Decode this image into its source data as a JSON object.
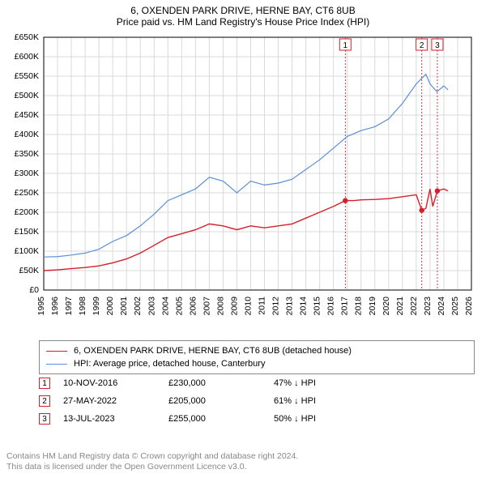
{
  "title_line1": "6, OXENDEN PARK DRIVE, HERNE BAY, CT6 8UB",
  "title_line2": "Price paid vs. HM Land Registry's House Price Index (HPI)",
  "chart": {
    "type": "line",
    "background_color": "#ffffff",
    "grid_color": "#d9d9d9",
    "axis_color": "#000000",
    "xlim": [
      1995,
      2026
    ],
    "ylim": [
      0,
      650000
    ],
    "y_ticks": [
      0,
      50000,
      100000,
      150000,
      200000,
      250000,
      300000,
      350000,
      400000,
      450000,
      500000,
      550000,
      600000,
      650000
    ],
    "y_tick_labels": [
      "£0",
      "£50K",
      "£100K",
      "£150K",
      "£200K",
      "£250K",
      "£300K",
      "£350K",
      "£400K",
      "£450K",
      "£500K",
      "£550K",
      "£600K",
      "£650K"
    ],
    "x_ticks": [
      1995,
      1996,
      1997,
      1998,
      1999,
      2000,
      2001,
      2002,
      2003,
      2004,
      2005,
      2006,
      2007,
      2008,
      2009,
      2010,
      2011,
      2012,
      2013,
      2014,
      2015,
      2016,
      2017,
      2018,
      2019,
      2020,
      2021,
      2022,
      2023,
      2024,
      2025,
      2026
    ],
    "series": [
      {
        "name": "price_paid",
        "color": "#d3212c",
        "line_width": 1.4,
        "points": [
          [
            1995,
            50000
          ],
          [
            1996,
            52000
          ],
          [
            1997,
            55000
          ],
          [
            1998,
            58000
          ],
          [
            1999,
            62000
          ],
          [
            2000,
            70000
          ],
          [
            2001,
            80000
          ],
          [
            2002,
            95000
          ],
          [
            2003,
            115000
          ],
          [
            2004,
            135000
          ],
          [
            2005,
            145000
          ],
          [
            2006,
            155000
          ],
          [
            2007,
            170000
          ],
          [
            2008,
            165000
          ],
          [
            2009,
            155000
          ],
          [
            2010,
            165000
          ],
          [
            2011,
            160000
          ],
          [
            2012,
            165000
          ],
          [
            2013,
            170000
          ],
          [
            2014,
            185000
          ],
          [
            2015,
            200000
          ],
          [
            2016,
            215000
          ],
          [
            2016.86,
            230000
          ],
          [
            2017.5,
            230000
          ],
          [
            2018,
            232000
          ],
          [
            2019,
            233000
          ],
          [
            2020,
            235000
          ],
          [
            2021,
            240000
          ],
          [
            2022,
            245000
          ],
          [
            2022.4,
            205000
          ],
          [
            2022.7,
            210000
          ],
          [
            2023,
            260000
          ],
          [
            2023.2,
            215000
          ],
          [
            2023.53,
            255000
          ],
          [
            2024,
            260000
          ],
          [
            2024.3,
            255000
          ]
        ],
        "dots": [
          {
            "x": 2016.86,
            "y": 230000
          },
          {
            "x": 2022.4,
            "y": 205000
          },
          {
            "x": 2023.53,
            "y": 255000
          }
        ]
      },
      {
        "name": "hpi",
        "color": "#5b8fd6",
        "line_width": 1.2,
        "points": [
          [
            1995,
            85000
          ],
          [
            1996,
            86000
          ],
          [
            1997,
            90000
          ],
          [
            1998,
            95000
          ],
          [
            1999,
            105000
          ],
          [
            2000,
            125000
          ],
          [
            2001,
            140000
          ],
          [
            2002,
            165000
          ],
          [
            2003,
            195000
          ],
          [
            2004,
            230000
          ],
          [
            2005,
            245000
          ],
          [
            2006,
            260000
          ],
          [
            2007,
            290000
          ],
          [
            2008,
            280000
          ],
          [
            2009,
            250000
          ],
          [
            2010,
            280000
          ],
          [
            2011,
            270000
          ],
          [
            2012,
            275000
          ],
          [
            2013,
            285000
          ],
          [
            2014,
            310000
          ],
          [
            2015,
            335000
          ],
          [
            2016,
            365000
          ],
          [
            2017,
            395000
          ],
          [
            2018,
            410000
          ],
          [
            2019,
            420000
          ],
          [
            2020,
            440000
          ],
          [
            2021,
            480000
          ],
          [
            2022,
            530000
          ],
          [
            2022.7,
            555000
          ],
          [
            2023,
            530000
          ],
          [
            2023.5,
            510000
          ],
          [
            2024,
            525000
          ],
          [
            2024.3,
            515000
          ]
        ]
      }
    ],
    "event_lines": [
      {
        "x": 2016.86,
        "label": "1",
        "color": "#d3212c"
      },
      {
        "x": 2022.4,
        "label": "2",
        "color": "#d3212c"
      },
      {
        "x": 2023.53,
        "label": "3",
        "color": "#d3212c"
      }
    ]
  },
  "legend": {
    "items": [
      {
        "color": "#d3212c",
        "label": "6, OXENDEN PARK DRIVE, HERNE BAY, CT6 8UB (detached house)"
      },
      {
        "color": "#5b8fd6",
        "label": "HPI: Average price, detached house, Canterbury"
      }
    ]
  },
  "events": [
    {
      "num": "1",
      "color": "#d3212c",
      "date": "10-NOV-2016",
      "price": "£230,000",
      "pct": "47% ↓ HPI"
    },
    {
      "num": "2",
      "color": "#d3212c",
      "date": "27-MAY-2022",
      "price": "£205,000",
      "pct": "61% ↓ HPI"
    },
    {
      "num": "3",
      "color": "#d3212c",
      "date": "13-JUL-2023",
      "price": "£255,000",
      "pct": "50% ↓ HPI"
    }
  ],
  "footer_line1": "Contains HM Land Registry data © Crown copyright and database right 2024.",
  "footer_line2": "This data is licensed under the Open Government Licence v3.0."
}
